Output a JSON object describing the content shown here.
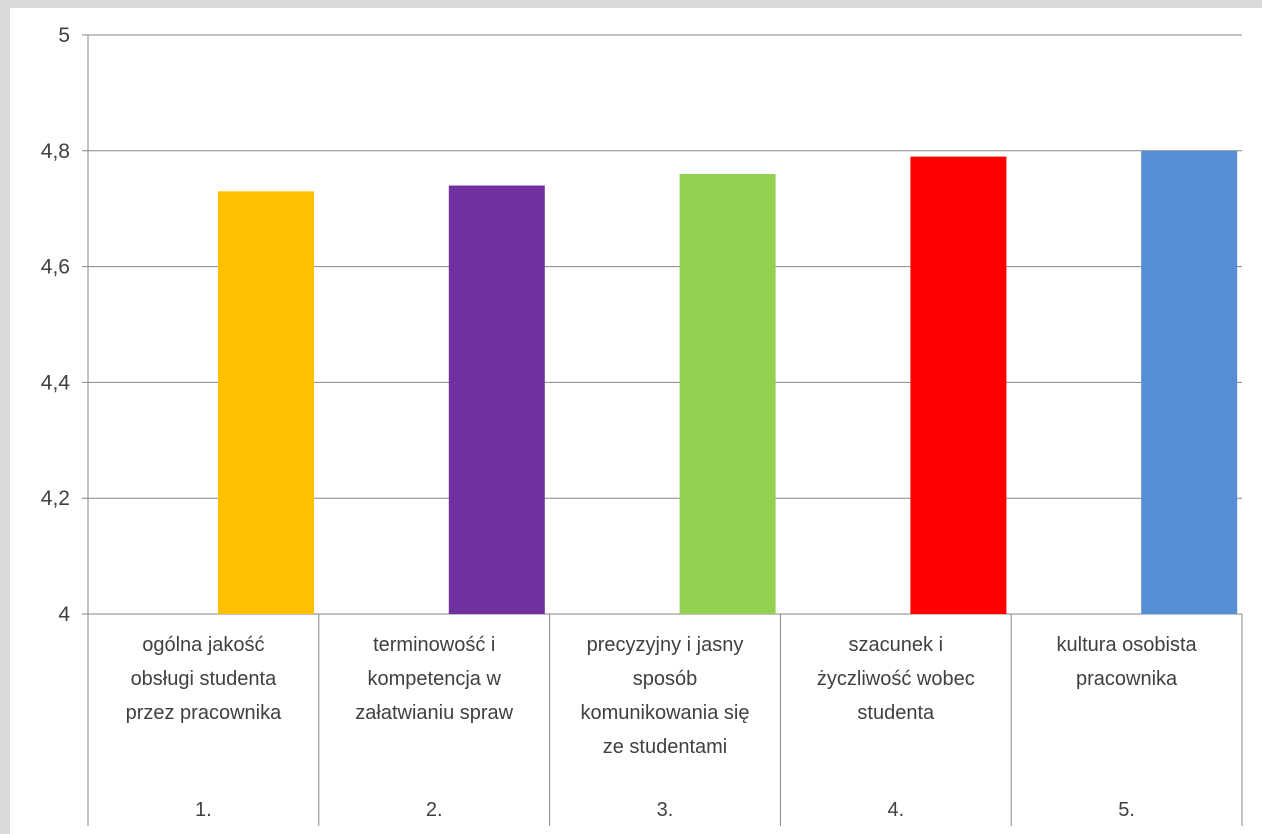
{
  "chart_data": {
    "type": "bar",
    "categories": [
      [
        "ogólna jakość",
        "obsługi studenta",
        "przez pracownika"
      ],
      [
        "terminowość i",
        "kompetencja w",
        "załatwianiu spraw"
      ],
      [
        "precyzyjny i jasny",
        "sposób",
        "komunikowania się",
        "ze studentami"
      ],
      [
        "szacunek i",
        "życzliwość wobec",
        "studenta"
      ],
      [
        "kultura osobista",
        "pracownika"
      ]
    ],
    "category_numbers": [
      "1.",
      "2.",
      "3.",
      "4.",
      "5."
    ],
    "values": [
      4.73,
      4.74,
      4.76,
      4.79,
      4.8
    ],
    "colors": [
      "#ffc000",
      "#7030a0",
      "#92d050",
      "#ff0000",
      "#558ed5"
    ],
    "ylim": [
      4,
      5
    ],
    "yticks": [
      4,
      4.2,
      4.4,
      4.6,
      4.8,
      5
    ],
    "ytick_labels": [
      "4",
      "4,2",
      "4,4",
      "4,6",
      "4,8",
      "5"
    ],
    "grid": true,
    "legend": "none"
  }
}
